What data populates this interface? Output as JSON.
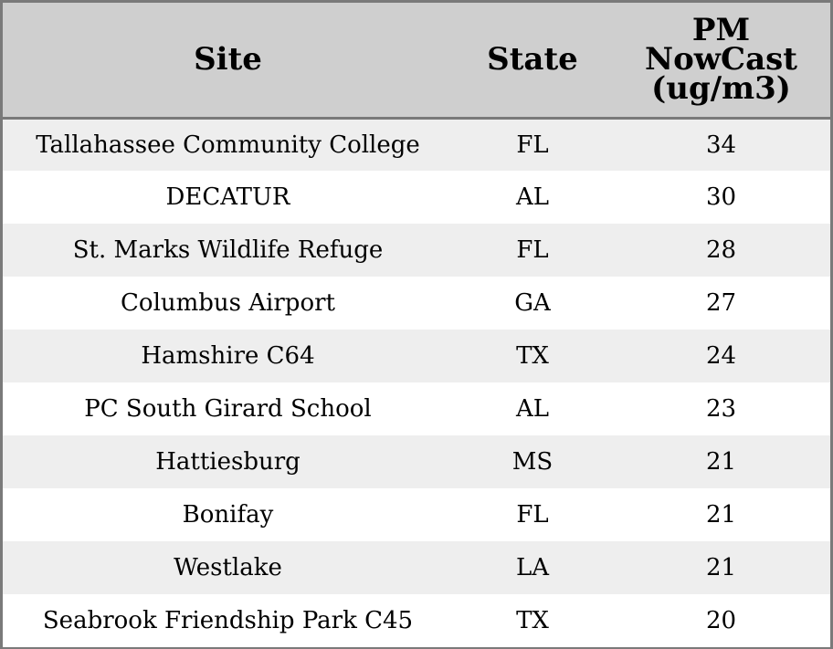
{
  "colors": {
    "header_bg": "#cfcfcf",
    "row_odd_bg": "#eeeeee",
    "row_even_bg": "#ffffff",
    "border": "#7a7a7a"
  },
  "chart_data": {
    "type": "table",
    "columns": [
      "Site",
      "State",
      "PM NowCast (ug/m3)"
    ],
    "header_lines": [
      [
        "Site"
      ],
      [
        "State"
      ],
      [
        "PM",
        "NowCast",
        "(ug/m3)"
      ]
    ],
    "rows": [
      [
        "Tallahassee Community College",
        "FL",
        34
      ],
      [
        "DECATUR",
        "AL",
        30
      ],
      [
        "St. Marks Wildlife Refuge",
        "FL",
        28
      ],
      [
        "Columbus Airport",
        "GA",
        27
      ],
      [
        "Hamshire C64",
        "TX",
        24
      ],
      [
        "PC South Girard School",
        "AL",
        23
      ],
      [
        "Hattiesburg",
        "MS",
        21
      ],
      [
        "Bonifay",
        "FL",
        21
      ],
      [
        "Westlake",
        "LA",
        21
      ],
      [
        "Seabrook Friendship Park C45",
        "TX",
        20
      ]
    ]
  }
}
